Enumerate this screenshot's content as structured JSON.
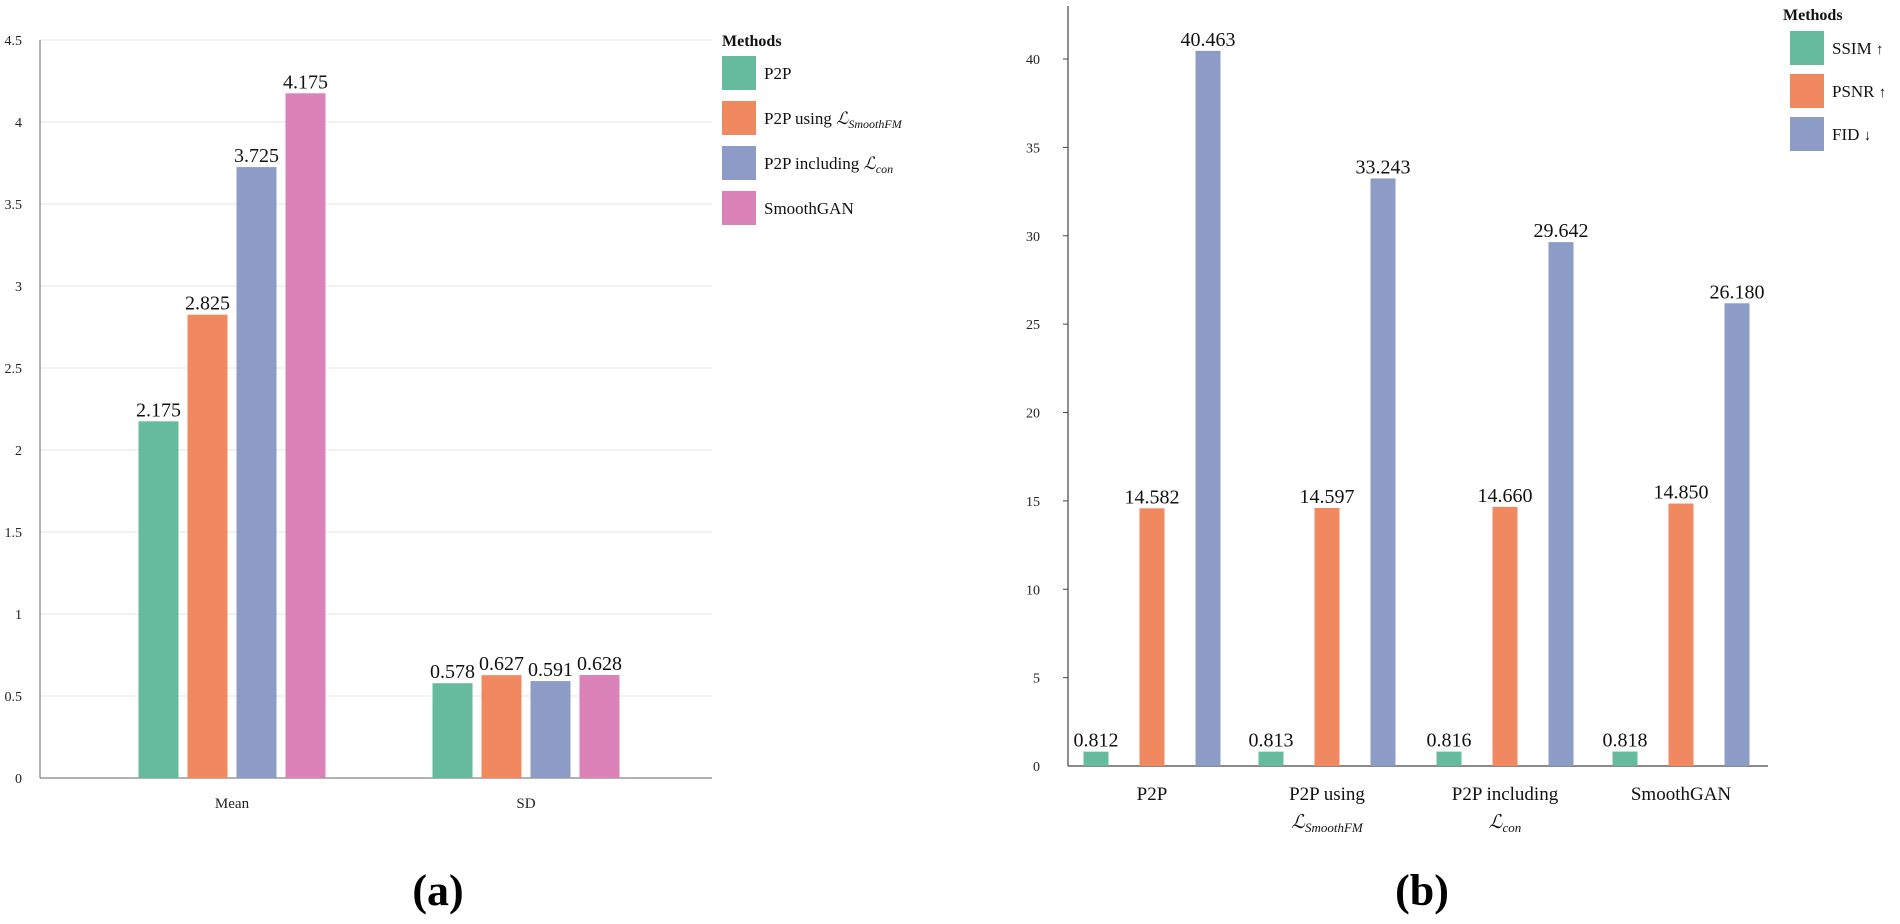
{
  "chart_data": [
    {
      "panel": "(a)",
      "type": "bar",
      "categories": [
        "Mean",
        "SD"
      ],
      "ylim": [
        0,
        4.5
      ],
      "yticks": [
        0,
        0.5,
        1,
        1.5,
        2,
        2.5,
        3,
        3.5,
        4,
        4.5
      ],
      "ytick_labels": [
        "0",
        "0.5",
        "1",
        "1.5",
        "2",
        "2.5",
        "3",
        "3.5",
        "4",
        "4.5"
      ],
      "grid": true,
      "legend_title": "Methods",
      "legend_position": "top-right",
      "series": [
        {
          "name": "P2P",
          "legend_label": "P2P",
          "color": "#66bb9f",
          "values": [
            2.175,
            0.578
          ],
          "labels": [
            "2.175",
            "0.578"
          ]
        },
        {
          "name": "P2P using L_SmoothFM",
          "legend_label": "P2P using ",
          "legend_math": "ℒ",
          "legend_sub": "SmoothFM",
          "color": "#f0895f",
          "values": [
            2.825,
            0.627
          ],
          "labels": [
            "2.825",
            "0.627"
          ]
        },
        {
          "name": "P2P including L_con",
          "legend_label": "P2P including ",
          "legend_math": "ℒ",
          "legend_sub": "con",
          "color": "#8c9cc6",
          "values": [
            3.725,
            0.591
          ],
          "labels": [
            "3.725",
            "0.591"
          ]
        },
        {
          "name": "SmoothGAN",
          "legend_label": "SmoothGAN",
          "color": "#db83b8",
          "values": [
            4.175,
            0.628
          ],
          "labels": [
            "4.175",
            "0.628"
          ]
        }
      ]
    },
    {
      "panel": "(b)",
      "type": "bar",
      "categories": [
        "P2P",
        "P2P using",
        "P2P including",
        "SmoothGAN"
      ],
      "category_lines2": [
        "",
        "ℒ",
        "ℒ",
        ""
      ],
      "category_subs": [
        "",
        "SmoothFM",
        "con",
        ""
      ],
      "ylim": [
        0,
        43
      ],
      "yticks": [
        0,
        5,
        10,
        15,
        20,
        25,
        30,
        35,
        40
      ],
      "ytick_labels": [
        "0",
        "5",
        "10",
        "15",
        "20",
        "25",
        "30",
        "35",
        "40"
      ],
      "grid": false,
      "legend_title": "Methods",
      "legend_position": "top-right",
      "series": [
        {
          "name": "SSIM",
          "legend_label": "SSIM",
          "arrow": "↑",
          "color": "#66bb9f",
          "values": [
            0.812,
            0.813,
            0.816,
            0.818
          ],
          "labels": [
            "0.812",
            "0.813",
            "0.816",
            "0.818"
          ]
        },
        {
          "name": "PSNR",
          "legend_label": "PSNR",
          "arrow": "↑",
          "color": "#f0895f",
          "values": [
            14.582,
            14.597,
            14.66,
            14.85
          ],
          "labels": [
            "14.582",
            "14.597",
            "14.660",
            "14.850"
          ]
        },
        {
          "name": "FID",
          "legend_label": "FID",
          "arrow": "↓",
          "color": "#8c9cc6",
          "values": [
            40.463,
            33.243,
            29.642,
            26.18
          ],
          "labels": [
            "40.463",
            "33.243",
            "29.642",
            "26.180"
          ]
        }
      ]
    }
  ]
}
